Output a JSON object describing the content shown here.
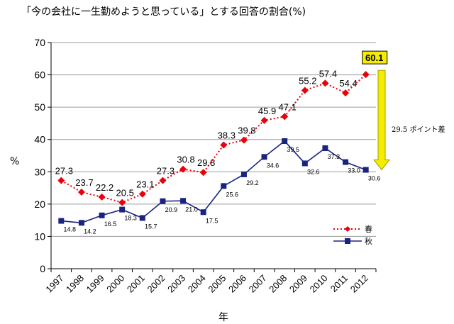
{
  "chart_data": {
    "type": "line",
    "title": "「今の会社に一生勤めようと思っている」とする回答の割合(%)",
    "xlabel": "年",
    "ylabel": "%",
    "ylim": [
      0,
      70
    ],
    "yticks": [
      0,
      10,
      20,
      30,
      40,
      50,
      60,
      70
    ],
    "grid": true,
    "legend_position": "bottom-right",
    "x": [
      "1997",
      "1998",
      "1999",
      "2000",
      "2001",
      "2002",
      "2003",
      "2004",
      "2005",
      "2006",
      "2007",
      "2008",
      "2009",
      "2010",
      "2011",
      "2012"
    ],
    "series": [
      {
        "name": "春",
        "color": "#e8000b",
        "style": "dotted",
        "marker": "diamond",
        "values": [
          27.3,
          23.7,
          22.2,
          20.5,
          23.1,
          27.3,
          30.8,
          29.8,
          38.3,
          39.8,
          45.9,
          47.1,
          55.2,
          57.4,
          54.4,
          60.1
        ],
        "labels": [
          "27.3",
          "23.7",
          "22.2",
          "20.5",
          "23.1",
          "27.3",
          "30.8",
          "29.8",
          "38.3",
          "39.8",
          "45.9",
          "47.1",
          "55.2",
          "57.4",
          "54.4",
          "60.1"
        ]
      },
      {
        "name": "秋",
        "color": "#1a237e",
        "style": "solid",
        "marker": "square",
        "values": [
          14.8,
          14.2,
          16.5,
          18.3,
          15.7,
          20.9,
          21.0,
          17.5,
          25.6,
          29.2,
          34.6,
          39.5,
          32.6,
          37.3,
          33.0,
          30.6
        ],
        "labels": [
          "14.8",
          "14.2",
          "16.5",
          "18.3",
          "15.7",
          "20.9",
          "21.0",
          "17.5",
          "25.6",
          "29.2",
          "34.6",
          "39.5",
          "32.6",
          "37.3",
          "33.0",
          "30.6"
        ]
      }
    ],
    "annotation": {
      "text": "29.5 ポイント差",
      "arrow_color": "#f5ec00",
      "highlight_fill": "#f5ec00",
      "highlight_value": "60.1"
    }
  }
}
